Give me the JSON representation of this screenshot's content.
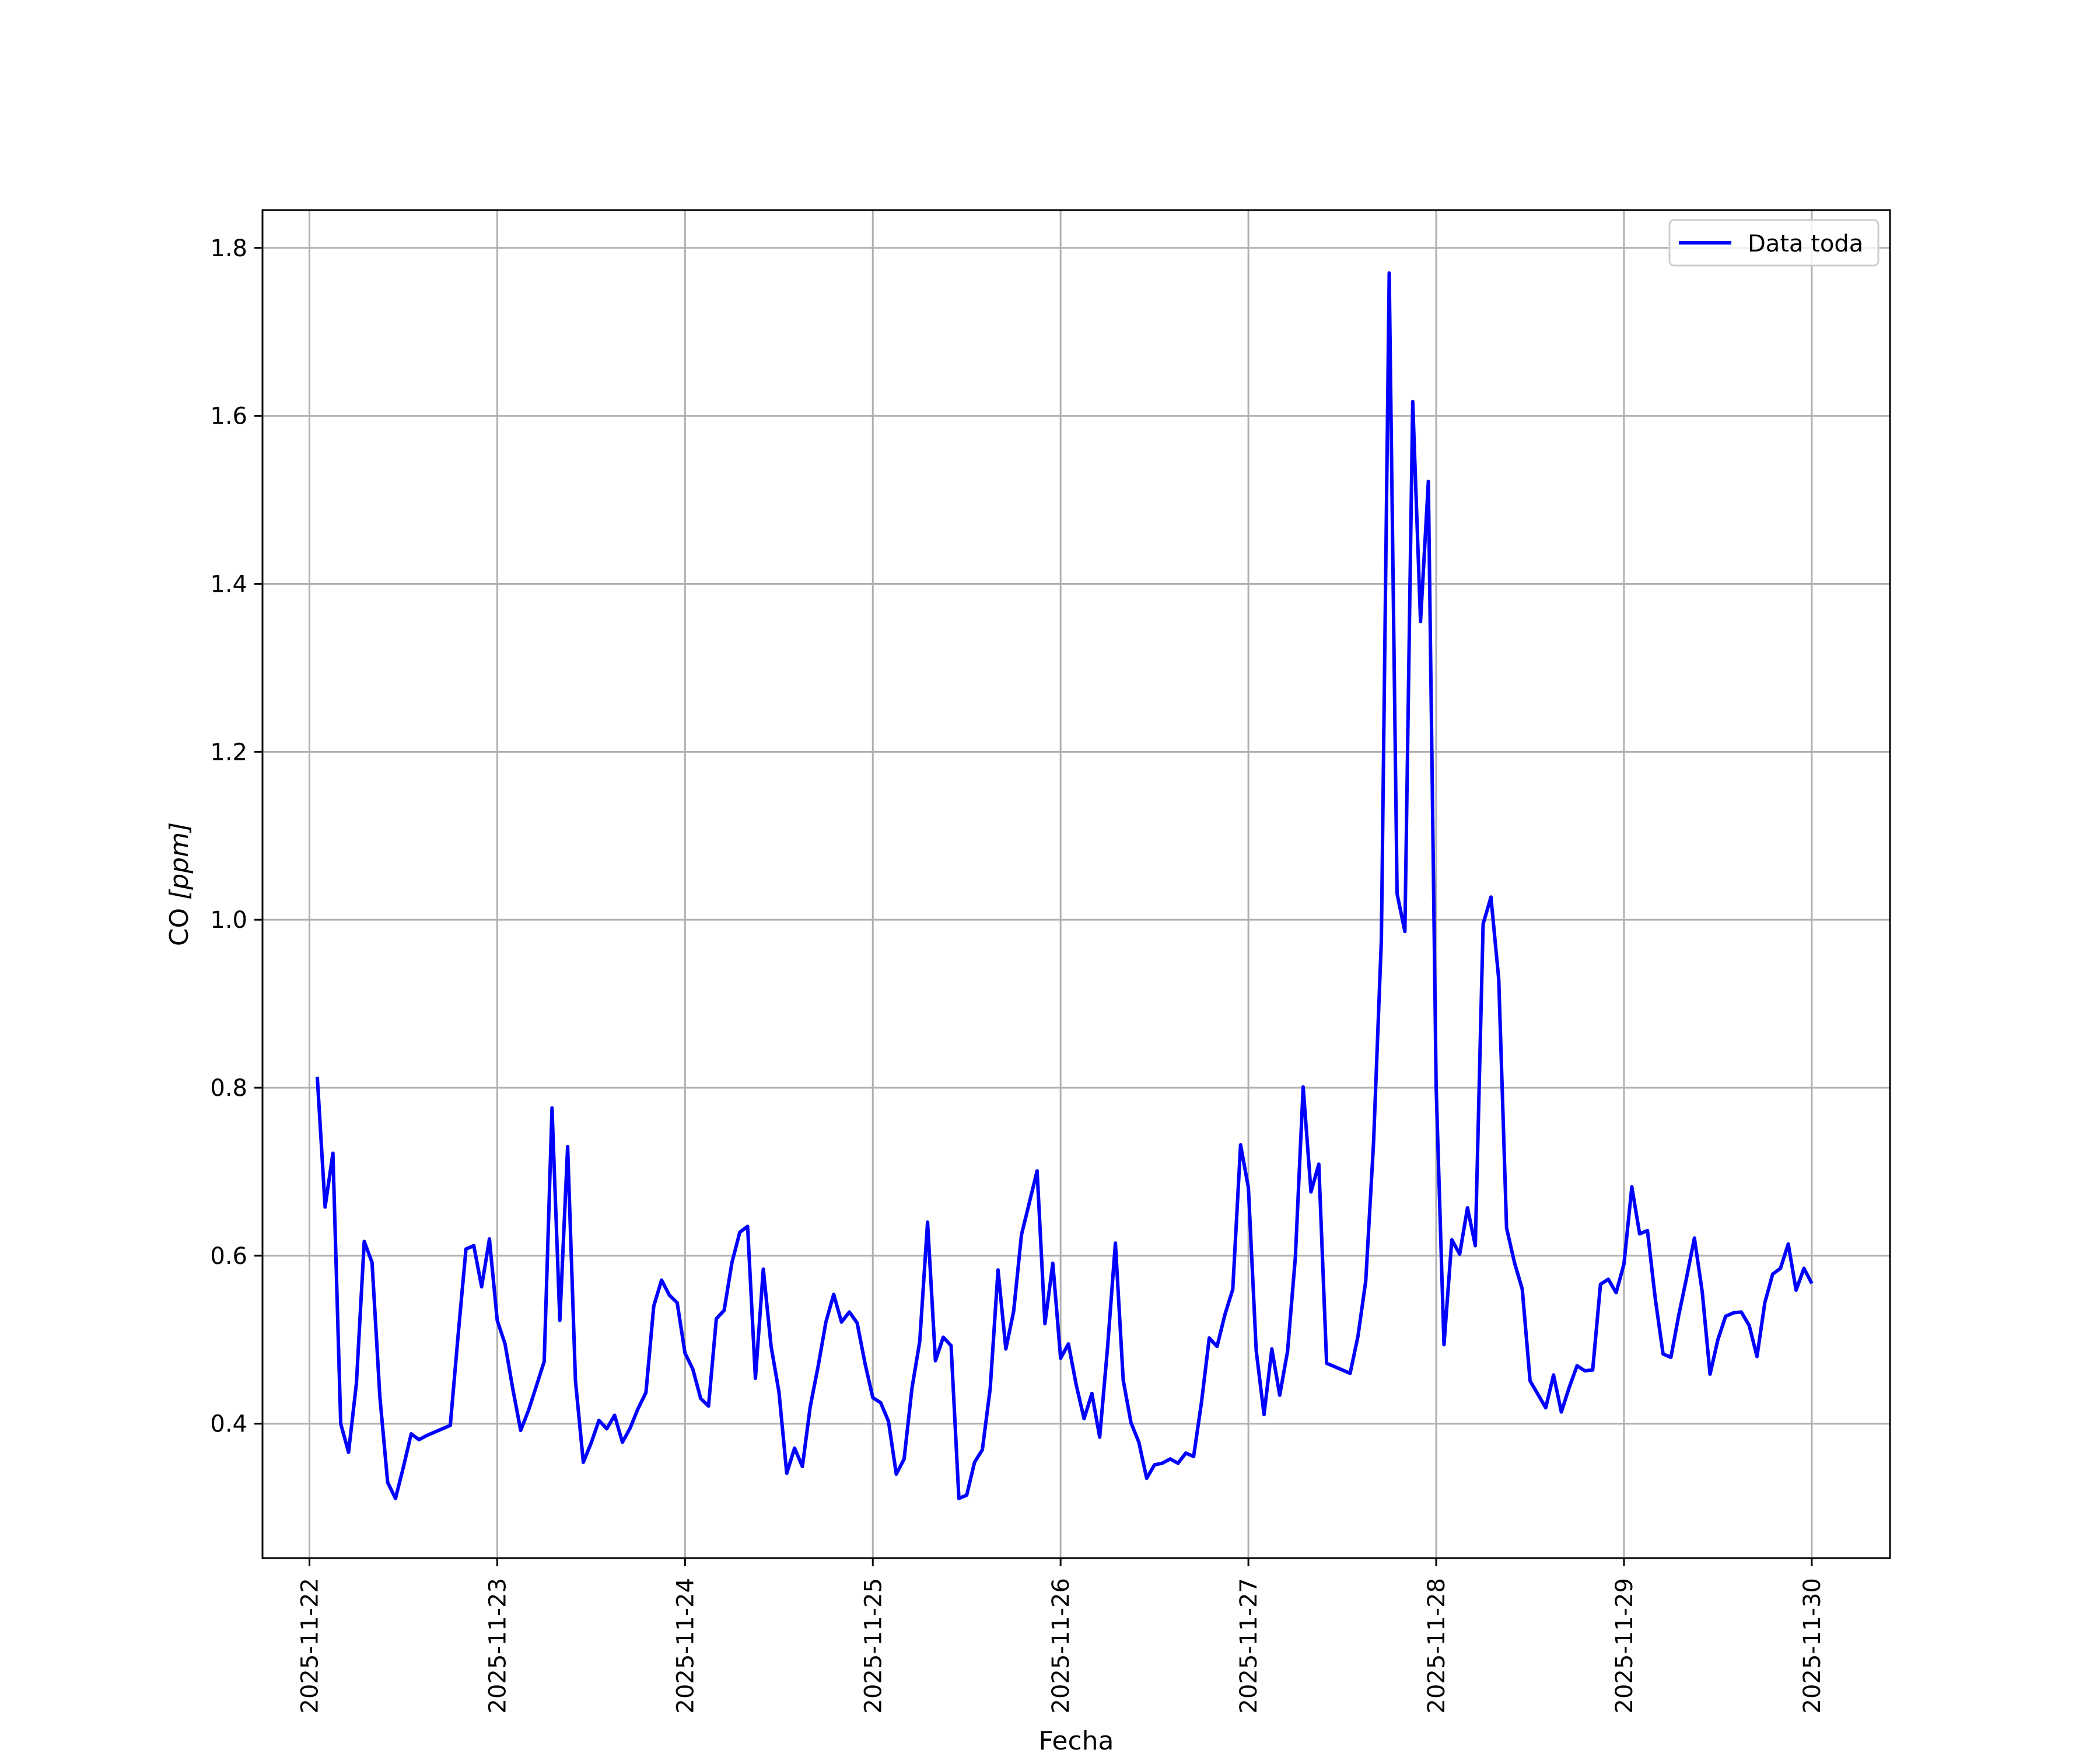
{
  "chart_data": {
    "type": "line",
    "title": "",
    "xlabel": "Fecha",
    "ylabel_main": "CO ",
    "ylabel_unit": "[ppm]",
    "grid": true,
    "legend_position": "top-right",
    "xlim": [
      "2025-11-21 18:00",
      "2025-11-30 10:00"
    ],
    "ylim": [
      0.24,
      1.845
    ],
    "x_ticks": [
      "2025-11-22",
      "2025-11-23",
      "2025-11-24",
      "2025-11-25",
      "2025-11-26",
      "2025-11-27",
      "2025-11-28",
      "2025-11-29",
      "2025-11-30"
    ],
    "y_ticks": [
      "0.4",
      "0.6",
      "0.8",
      "1.0",
      "1.2",
      "1.4",
      "1.6",
      "1.8"
    ],
    "colors": {
      "series": "#0000ff",
      "grid": "#b0b0b0",
      "axes": "#000000"
    },
    "series": [
      {
        "name": "Data toda",
        "x": [
          "2025-11-22 01:00",
          "2025-11-22 02:00",
          "2025-11-22 03:00",
          "2025-11-22 04:00",
          "2025-11-22 05:00",
          "2025-11-22 06:00",
          "2025-11-22 07:00",
          "2025-11-22 08:00",
          "2025-11-22 09:00",
          "2025-11-22 10:00",
          "2025-11-22 11:00",
          "2025-11-22 12:00",
          "2025-11-22 13:00",
          "2025-11-22 14:00",
          "2025-11-22 15:00",
          "2025-11-22 16:00",
          "2025-11-22 17:00",
          "2025-11-22 18:00",
          "2025-11-22 19:00",
          "2025-11-22 20:00",
          "2025-11-22 21:00",
          "2025-11-22 22:00",
          "2025-11-22 23:00",
          "2025-11-23 00:00",
          "2025-11-23 01:00",
          "2025-11-23 02:00",
          "2025-11-23 03:00",
          "2025-11-23 04:00",
          "2025-11-23 05:00",
          "2025-11-23 06:00",
          "2025-11-23 07:00",
          "2025-11-23 08:00",
          "2025-11-23 09:00",
          "2025-11-23 10:00",
          "2025-11-23 11:00",
          "2025-11-23 12:00",
          "2025-11-23 13:00",
          "2025-11-23 14:00",
          "2025-11-23 15:00",
          "2025-11-23 16:00",
          "2025-11-23 17:00",
          "2025-11-23 18:00",
          "2025-11-23 19:00",
          "2025-11-23 20:00",
          "2025-11-23 21:00",
          "2025-11-23 22:00",
          "2025-11-23 23:00",
          "2025-11-24 00:00",
          "2025-11-24 01:00",
          "2025-11-24 02:00",
          "2025-11-24 03:00",
          "2025-11-24 04:00",
          "2025-11-24 05:00",
          "2025-11-24 06:00",
          "2025-11-24 07:00",
          "2025-11-24 08:00",
          "2025-11-24 09:00",
          "2025-11-24 10:00",
          "2025-11-24 11:00",
          "2025-11-24 12:00",
          "2025-11-24 13:00",
          "2025-11-24 14:00",
          "2025-11-24 15:00",
          "2025-11-24 16:00",
          "2025-11-24 17:00",
          "2025-11-24 18:00",
          "2025-11-24 19:00",
          "2025-11-24 20:00",
          "2025-11-24 21:00",
          "2025-11-24 22:00",
          "2025-11-24 23:00",
          "2025-11-25 00:00",
          "2025-11-25 01:00",
          "2025-11-25 02:00",
          "2025-11-25 03:00",
          "2025-11-25 04:00",
          "2025-11-25 05:00",
          "2025-11-25 06:00",
          "2025-11-25 07:00",
          "2025-11-25 08:00",
          "2025-11-25 09:00",
          "2025-11-25 10:00",
          "2025-11-25 11:00",
          "2025-11-25 12:00",
          "2025-11-25 13:00",
          "2025-11-25 14:00",
          "2025-11-25 15:00",
          "2025-11-25 16:00",
          "2025-11-25 17:00",
          "2025-11-25 18:00",
          "2025-11-25 19:00",
          "2025-11-25 20:00",
          "2025-11-25 21:00",
          "2025-11-25 22:00",
          "2025-11-25 23:00",
          "2025-11-26 00:00",
          "2025-11-26 01:00",
          "2025-11-26 02:00",
          "2025-11-26 03:00",
          "2025-11-26 04:00",
          "2025-11-26 05:00",
          "2025-11-26 06:00",
          "2025-11-26 07:00",
          "2025-11-26 08:00",
          "2025-11-26 09:00",
          "2025-11-26 10:00",
          "2025-11-26 11:00",
          "2025-11-26 12:00",
          "2025-11-26 13:00",
          "2025-11-26 14:00",
          "2025-11-26 15:00",
          "2025-11-26 16:00",
          "2025-11-26 17:00",
          "2025-11-26 18:00",
          "2025-11-26 19:00",
          "2025-11-26 20:00",
          "2025-11-26 21:00",
          "2025-11-26 22:00",
          "2025-11-26 23:00",
          "2025-11-27 00:00",
          "2025-11-27 01:00",
          "2025-11-27 02:00",
          "2025-11-27 03:00",
          "2025-11-27 04:00",
          "2025-11-27 05:00",
          "2025-11-27 06:00",
          "2025-11-27 07:00",
          "2025-11-27 08:00",
          "2025-11-27 09:00",
          "2025-11-27 10:00",
          "2025-11-27 13:00",
          "2025-11-27 14:00",
          "2025-11-27 15:00",
          "2025-11-27 16:00",
          "2025-11-27 17:00",
          "2025-11-27 18:00",
          "2025-11-27 19:00",
          "2025-11-27 20:00",
          "2025-11-27 21:00",
          "2025-11-27 22:00",
          "2025-11-27 23:00",
          "2025-11-28 00:00",
          "2025-11-28 01:00",
          "2025-11-28 02:00",
          "2025-11-28 03:00",
          "2025-11-28 04:00",
          "2025-11-28 05:00",
          "2025-11-28 06:00",
          "2025-11-28 07:00",
          "2025-11-28 08:00",
          "2025-11-28 09:00",
          "2025-11-28 10:00",
          "2025-11-28 11:00",
          "2025-11-28 12:00",
          "2025-11-28 13:00",
          "2025-11-28 14:00",
          "2025-11-28 15:00",
          "2025-11-28 16:00",
          "2025-11-28 17:00",
          "2025-11-28 18:00",
          "2025-11-28 19:00",
          "2025-11-28 20:00",
          "2025-11-28 21:00",
          "2025-11-28 22:00",
          "2025-11-28 23:00",
          "2025-11-29 00:00",
          "2025-11-29 01:00",
          "2025-11-29 02:00",
          "2025-11-29 03:00",
          "2025-11-29 04:00",
          "2025-11-29 05:00",
          "2025-11-29 06:00",
          "2025-11-29 07:00",
          "2025-11-29 08:00",
          "2025-11-29 09:00",
          "2025-11-29 10:00",
          "2025-11-29 11:00",
          "2025-11-29 12:00",
          "2025-11-29 13:00",
          "2025-11-29 14:00",
          "2025-11-29 15:00",
          "2025-11-29 16:00",
          "2025-11-29 17:00",
          "2025-11-29 18:00",
          "2025-11-29 19:00",
          "2025-11-29 20:00",
          "2025-11-29 21:00",
          "2025-11-29 22:00",
          "2025-11-29 23:00",
          "2025-11-30 00:00"
        ],
        "y": [
          0.813,
          0.658,
          0.722,
          0.4,
          0.366,
          0.448,
          0.617,
          0.592,
          0.432,
          0.33,
          0.311,
          0.348,
          0.388,
          0.381,
          0.386,
          0.39,
          0.394,
          0.398,
          0.505,
          0.608,
          0.612,
          0.563,
          0.62,
          0.523,
          0.495,
          0.441,
          0.392,
          0.416,
          0.445,
          0.474,
          0.776,
          0.523,
          0.73,
          0.451,
          0.354,
          0.377,
          0.404,
          0.394,
          0.41,
          0.378,
          0.395,
          0.418,
          0.437,
          0.54,
          0.571,
          0.553,
          0.544,
          0.484,
          0.465,
          0.43,
          0.421,
          0.525,
          0.535,
          0.592,
          0.628,
          0.635,
          0.454,
          0.584,
          0.492,
          0.438,
          0.341,
          0.371,
          0.349,
          0.42,
          0.468,
          0.521,
          0.554,
          0.521,
          0.533,
          0.52,
          0.472,
          0.431,
          0.425,
          0.403,
          0.34,
          0.358,
          0.442,
          0.498,
          0.64,
          0.475,
          0.503,
          0.493,
          0.311,
          0.315,
          0.354,
          0.369,
          0.442,
          0.583,
          0.489,
          0.534,
          0.625,
          0.663,
          0.701,
          0.519,
          0.591,
          0.478,
          0.495,
          0.446,
          0.406,
          0.436,
          0.384,
          0.491,
          0.615,
          0.452,
          0.401,
          0.378,
          0.335,
          0.351,
          0.353,
          0.358,
          0.353,
          0.365,
          0.361,
          0.425,
          0.502,
          0.492,
          0.53,
          0.56,
          0.732,
          0.681,
          0.487,
          0.411,
          0.489,
          0.434,
          0.486,
          0.598,
          0.801,
          0.676,
          0.709,
          0.472,
          0.46,
          0.504,
          0.57,
          0.735,
          0.977,
          1.77,
          1.031,
          0.986,
          1.617,
          1.355,
          1.522,
          0.8,
          0.494,
          0.619,
          0.602,
          0.657,
          0.612,
          0.995,
          1.027,
          0.929,
          0.633,
          0.592,
          0.56,
          0.451,
          0.435,
          0.419,
          0.458,
          0.414,
          0.443,
          0.469,
          0.463,
          0.464,
          0.566,
          0.572,
          0.556,
          0.59,
          0.682,
          0.626,
          0.63,
          0.549,
          0.483,
          0.479,
          0.529,
          0.574,
          0.621,
          0.557,
          0.459,
          0.5,
          0.528,
          0.532,
          0.533,
          0.517,
          0.48,
          0.544,
          0.578,
          0.585,
          0.614,
          0.559,
          0.585,
          0.567
        ]
      }
    ]
  }
}
